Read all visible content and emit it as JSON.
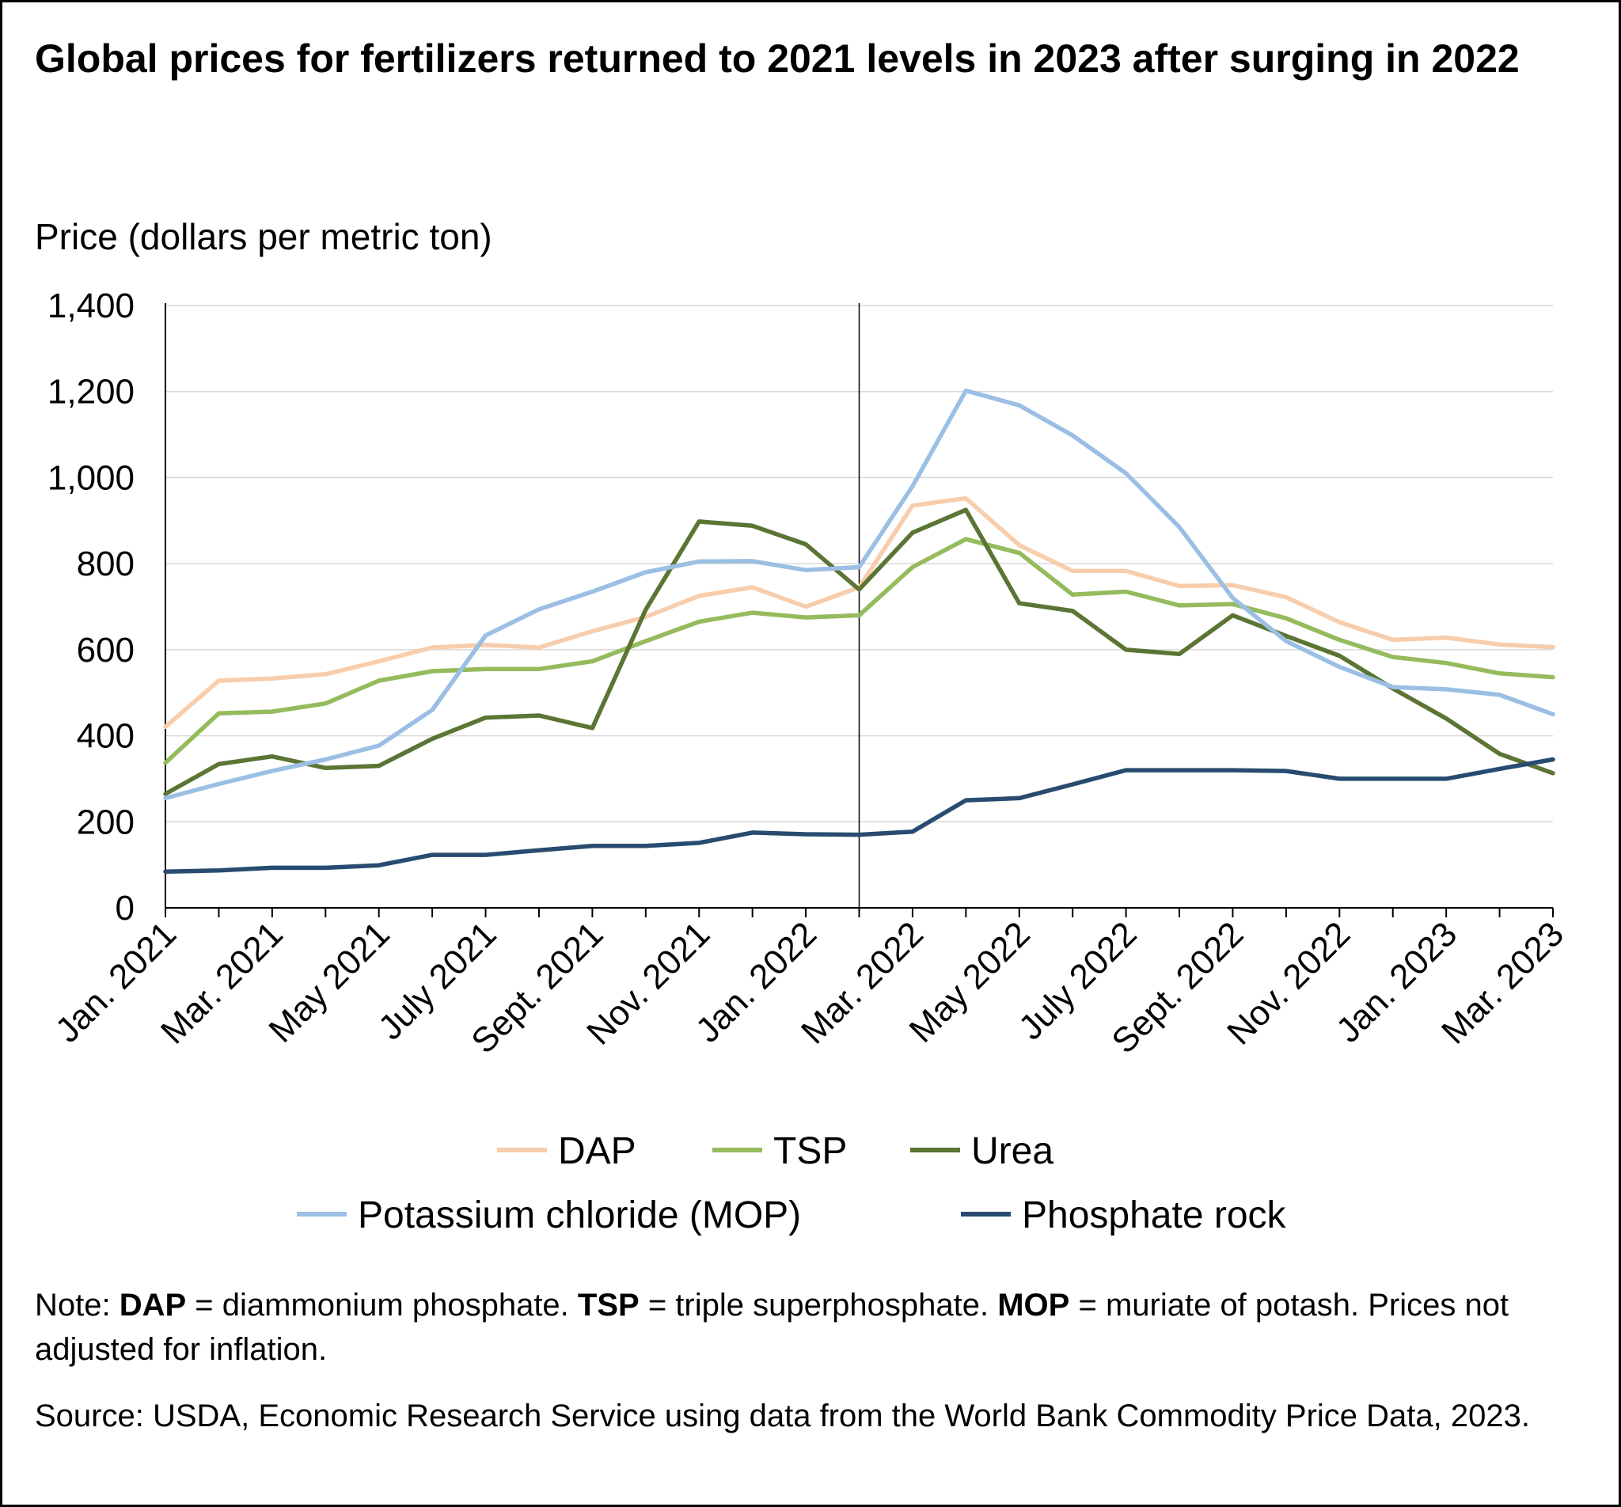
{
  "title": "Global prices for fertilizers returned to 2021 levels in 2023 after surging in 2022",
  "note": {
    "prefix": "Note: ",
    "dap_abbr": "DAP",
    "dap_def": " = diammonium phosphate. ",
    "tsp_abbr": "TSP",
    "tsp_def": " = triple superphosphate. ",
    "mop_abbr": "MOP",
    "mop_def": " = muriate of potash. Prices not adjusted for inflation."
  },
  "source": "Source: USDA, Economic Research Service using data from the World Bank Commodity Price Data, 2023.",
  "chart_data": {
    "type": "line",
    "ylabel": "Price (dollars per metric ton)",
    "ylim": [
      0,
      1400
    ],
    "yticks": [
      0,
      200,
      400,
      600,
      800,
      1000,
      1200,
      1400
    ],
    "ytick_labels": [
      "0",
      "200",
      "400",
      "600",
      "800",
      "1,000",
      "1,200",
      "1,400"
    ],
    "grid": true,
    "legend_position": "bottom",
    "reference_line_at": "Feb. 2022",
    "x": [
      "Jan. 2021",
      "Feb. 2021",
      "Mar. 2021",
      "Apr. 2021",
      "May 2021",
      "June 2021",
      "July 2021",
      "Aug. 2021",
      "Sept. 2021",
      "Oct. 2021",
      "Nov. 2021",
      "Dec. 2021",
      "Jan. 2022",
      "Feb. 2022",
      "Mar. 2022",
      "Apr. 2022",
      "May 2022",
      "June 2022",
      "July 2022",
      "Aug. 2022",
      "Sept. 2022",
      "Oct. 2022",
      "Nov. 2022",
      "Dec. 2022",
      "Jan. 2023",
      "Feb. 2023",
      "Mar. 2023"
    ],
    "xtick_labels": [
      "Jan. 2021",
      "",
      "Mar. 2021",
      "",
      "May 2021",
      "",
      "July 2021",
      "",
      "Sept. 2021",
      "",
      "Nov. 2021",
      "",
      "Jan. 2022",
      "",
      "Mar. 2022",
      "",
      "May 2022",
      "",
      "July 2022",
      "",
      "Sept. 2022",
      "",
      "Nov. 2022",
      "",
      "Jan. 2023",
      "",
      "Mar. 2023"
    ],
    "series": [
      {
        "name": "DAP",
        "color": "#f8cdab",
        "values": [
          421,
          528,
          533,
          543,
          573,
          605,
          611,
          605,
          643,
          676,
          725,
          745,
          700,
          745,
          935,
          952,
          843,
          783,
          783,
          748,
          750,
          722,
          664,
          623,
          628,
          612,
          606
        ]
      },
      {
        "name": "TSP",
        "color": "#95bb5d",
        "values": [
          337,
          452,
          456,
          475,
          528,
          550,
          555,
          555,
          573,
          620,
          665,
          686,
          675,
          680,
          792,
          857,
          825,
          728,
          735,
          703,
          706,
          673,
          623,
          583,
          569,
          545,
          536
        ]
      },
      {
        "name": "Urea",
        "color": "#5b7534",
        "values": [
          265,
          334,
          352,
          325,
          330,
          393,
          442,
          447,
          418,
          693,
          898,
          888,
          845,
          740,
          872,
          925,
          708,
          690,
          600,
          590,
          680,
          632,
          586,
          510,
          440,
          358,
          313
        ]
      },
      {
        "name": "Potassium chloride (MOP)",
        "color": "#9bbfe4",
        "values": [
          255,
          288,
          318,
          345,
          377,
          460,
          633,
          694,
          735,
          780,
          805,
          806,
          785,
          792,
          980,
          1202,
          1168,
          1098,
          1010,
          885,
          720,
          620,
          560,
          513,
          508,
          495,
          450
        ]
      },
      {
        "name": "Phosphate rock",
        "color": "#284b71",
        "values": [
          84,
          87,
          93,
          93,
          99,
          123,
          123,
          134,
          144,
          144,
          151,
          175,
          171,
          170,
          177,
          250,
          255,
          287,
          320,
          320,
          320,
          318,
          300,
          300,
          300,
          323,
          345
        ]
      }
    ]
  }
}
